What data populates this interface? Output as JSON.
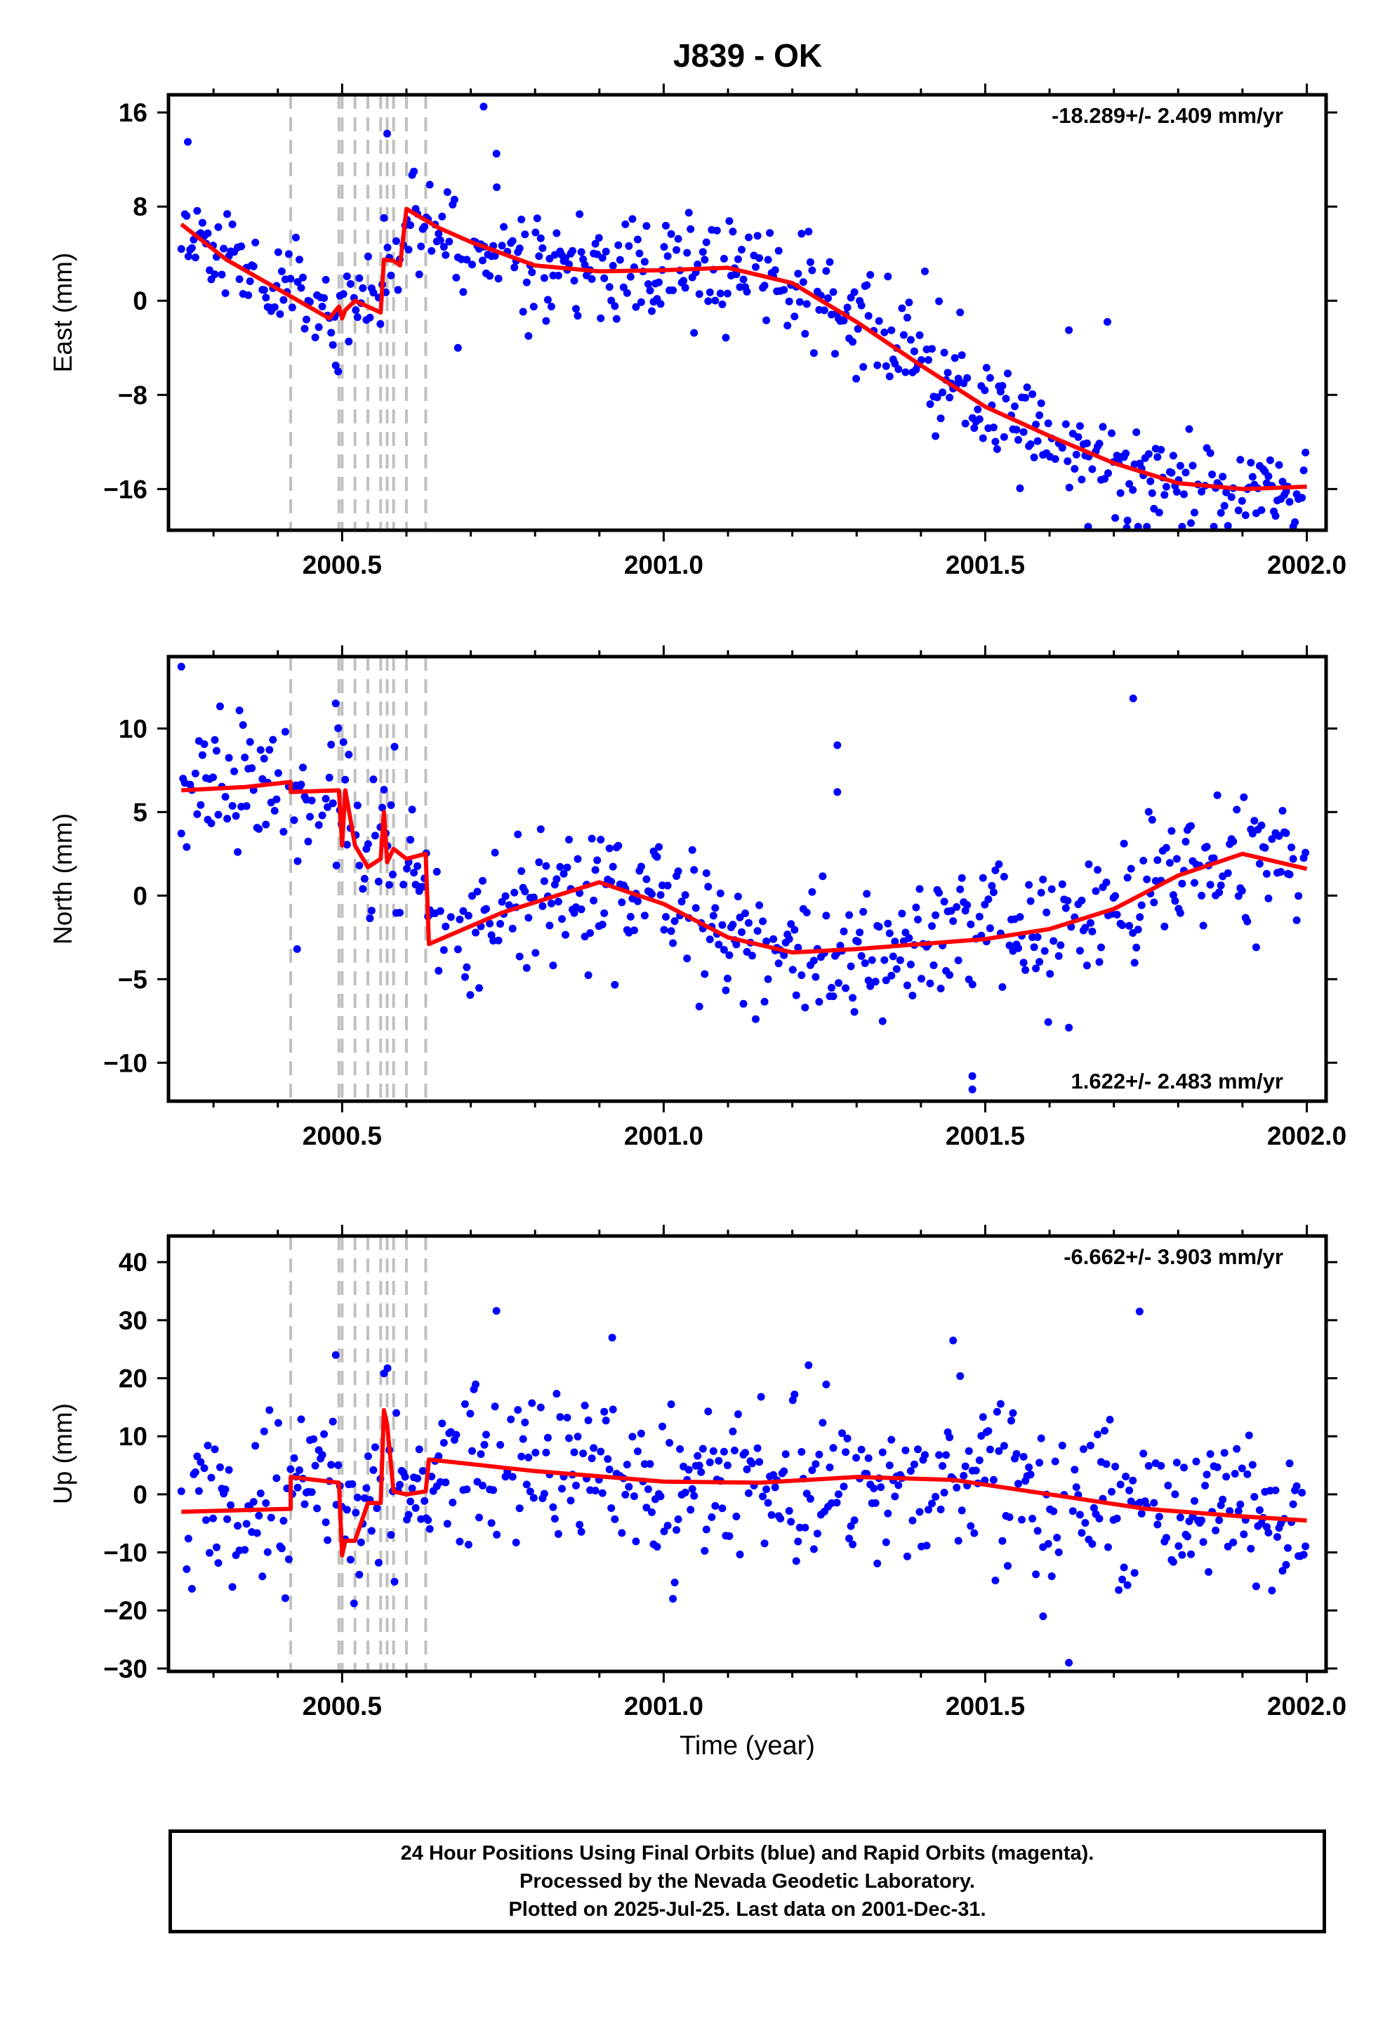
{
  "chart_data": {
    "type": "scatter",
    "title": "J839 - OK",
    "xlabel": "Time (year)",
    "x_ticks": [
      "2000.5",
      "2001.0",
      "2001.5",
      "2002.0"
    ],
    "xlim": [
      2000.23,
      2002.03
    ],
    "colors": {
      "points": "#0000ff",
      "model": "#ff0000",
      "steps": "#c0c0c0",
      "frame": "#000000"
    },
    "step_epochs": [
      2000.42,
      2000.495,
      2000.5,
      2000.52,
      2000.54,
      2000.56,
      2000.57,
      2000.58,
      2000.6,
      2000.63
    ],
    "last_data": 2001.9973,
    "panels": [
      {
        "key": "east",
        "ylabel": "East (mm)",
        "ylim": [
          -19.5,
          17.5
        ],
        "y_ticks": [
          16,
          8,
          0,
          -8,
          -16
        ],
        "rate_text": "-18.289+/- 2.409 mm/yr",
        "rate_pos": "top-right",
        "model": [
          [
            2000.25,
            6.5
          ],
          [
            2000.32,
            3.5
          ],
          [
            2000.4,
            1.0
          ],
          [
            2000.48,
            -1.5
          ],
          [
            2000.495,
            -0.5
          ],
          [
            2000.5,
            -1.5
          ],
          [
            2000.505,
            -0.8
          ],
          [
            2000.52,
            0
          ],
          [
            2000.54,
            -0.5
          ],
          [
            2000.56,
            -1.0
          ],
          [
            2000.565,
            3.5
          ],
          [
            2000.58,
            3.4
          ],
          [
            2000.59,
            3.0
          ],
          [
            2000.6,
            7.8
          ],
          [
            2000.65,
            6.2
          ],
          [
            2000.7,
            5.0
          ],
          [
            2000.8,
            3.0
          ],
          [
            2000.9,
            2.5
          ],
          [
            2001.0,
            2.6
          ],
          [
            2001.1,
            2.8
          ],
          [
            2001.2,
            1.5
          ],
          [
            2001.3,
            -1.8
          ],
          [
            2001.4,
            -5.5
          ],
          [
            2001.5,
            -9.0
          ],
          [
            2001.6,
            -11.5
          ],
          [
            2001.7,
            -13.8
          ],
          [
            2001.8,
            -15.5
          ],
          [
            2001.9,
            -16.0
          ],
          [
            2002.0,
            -15.8
          ]
        ],
        "seed": 11,
        "noise": 2.2,
        "outliers": [
          [
            2000.26,
            13.5
          ],
          [
            2000.74,
            12.5
          ],
          [
            2000.57,
            14.2
          ],
          [
            2000.72,
            16.5
          ],
          [
            2000.68,
            -4.0
          ],
          [
            2000.49,
            -5.5
          ],
          [
            2001.66,
            -19.2
          ],
          [
            2001.72,
            -19.3
          ],
          [
            2001.63,
            -2.5
          ],
          [
            2001.69,
            -1.8
          ]
        ]
      },
      {
        "key": "north",
        "ylabel": "North (mm)",
        "ylim": [
          -12.3,
          14.3
        ],
        "y_ticks": [
          10,
          5,
          0,
          -5,
          -10
        ],
        "rate_text": "1.622+/- 2.483 mm/yr",
        "rate_pos": "bottom-right",
        "model": [
          [
            2000.25,
            6.3
          ],
          [
            2000.35,
            6.5
          ],
          [
            2000.42,
            6.8
          ],
          [
            2000.42,
            6.2
          ],
          [
            2000.495,
            6.3
          ],
          [
            2000.5,
            3.0
          ],
          [
            2000.505,
            6.3
          ],
          [
            2000.52,
            3.0
          ],
          [
            2000.54,
            1.7
          ],
          [
            2000.56,
            2.2
          ],
          [
            2000.565,
            5.0
          ],
          [
            2000.57,
            2.0
          ],
          [
            2000.58,
            2.8
          ],
          [
            2000.6,
            2.2
          ],
          [
            2000.63,
            2.5
          ],
          [
            2000.635,
            -2.9
          ],
          [
            2000.75,
            -1.0
          ],
          [
            2000.9,
            0.8
          ],
          [
            2001.0,
            -0.5
          ],
          [
            2001.1,
            -2.5
          ],
          [
            2001.2,
            -3.4
          ],
          [
            2001.3,
            -3.2
          ],
          [
            2001.5,
            -2.6
          ],
          [
            2001.6,
            -2.0
          ],
          [
            2001.7,
            -0.8
          ],
          [
            2001.8,
            1.2
          ],
          [
            2001.9,
            2.5
          ],
          [
            2002.0,
            1.6
          ]
        ],
        "seed": 23,
        "noise": 2.0,
        "outliers": [
          [
            2000.25,
            13.7
          ],
          [
            2000.49,
            11.5
          ],
          [
            2001.27,
            9.0
          ],
          [
            2001.27,
            6.2
          ],
          [
            2001.73,
            11.8
          ],
          [
            2001.48,
            -10.8
          ],
          [
            2001.48,
            -11.6
          ],
          [
            2001.63,
            -7.9
          ],
          [
            2000.43,
            -3.2
          ]
        ]
      },
      {
        "key": "up",
        "ylabel": "Up (mm)",
        "ylim": [
          -30.5,
          44.5
        ],
        "y_ticks": [
          40,
          30,
          20,
          10,
          0,
          -10,
          -20,
          -30
        ],
        "rate_text": "-6.662+/- 3.903 mm/yr",
        "rate_pos": "top-right",
        "model": [
          [
            2000.25,
            -3.0
          ],
          [
            2000.42,
            -2.5
          ],
          [
            2000.42,
            3.0
          ],
          [
            2000.495,
            2.0
          ],
          [
            2000.5,
            -10.5
          ],
          [
            2000.505,
            -8.0
          ],
          [
            2000.52,
            -8.0
          ],
          [
            2000.54,
            -1.5
          ],
          [
            2000.56,
            -1.5
          ],
          [
            2000.565,
            14.5
          ],
          [
            2000.57,
            12.0
          ],
          [
            2000.58,
            0.5
          ],
          [
            2000.6,
            0
          ],
          [
            2000.63,
            0.5
          ],
          [
            2000.635,
            6.0
          ],
          [
            2000.8,
            4.0
          ],
          [
            2001.0,
            2.2
          ],
          [
            2001.15,
            2.0
          ],
          [
            2001.3,
            3.0
          ],
          [
            2001.45,
            2.5
          ],
          [
            2001.6,
            0
          ],
          [
            2001.75,
            -2.5
          ],
          [
            2001.9,
            -3.8
          ],
          [
            2002.0,
            -4.5
          ]
        ],
        "seed": 37,
        "noise": 6.5,
        "outliers": [
          [
            2000.74,
            31.6
          ],
          [
            2001.59,
            -21.0
          ],
          [
            2001.63,
            -29.0
          ],
          [
            2000.92,
            27.0
          ],
          [
            2001.45,
            26.5
          ],
          [
            2001.74,
            31.5
          ],
          [
            2000.49,
            24.0
          ]
        ]
      }
    ]
  },
  "footer": {
    "line1": "24 Hour Positions Using Final Orbits (blue) and Rapid Orbits (magenta).",
    "line2": "Processed by the Nevada Geodetic Laboratory.",
    "line3": "Plotted on 2025-Jul-25. Last data on 2001-Dec-31."
  }
}
